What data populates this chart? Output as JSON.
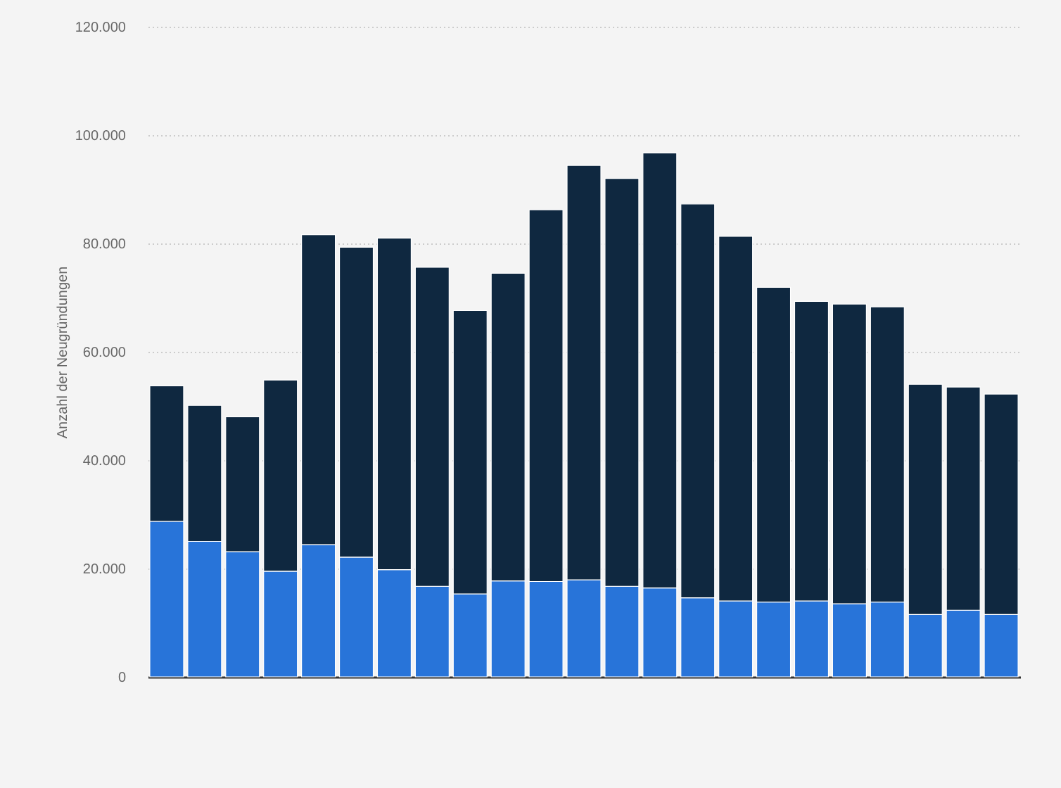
{
  "chart_data": {
    "type": "bar",
    "stacked": true,
    "ylabel": "Anzahl der Neugründungen",
    "categories": [
      null,
      null,
      null,
      null,
      null,
      null,
      null,
      null,
      null,
      null,
      null,
      null,
      null,
      null,
      null,
      null,
      null,
      null,
      null,
      null,
      null,
      null,
      null
    ],
    "series": [
      {
        "color": "#2874d9",
        "values": [
          28700,
          25000,
          23100,
          19500,
          24400,
          22100,
          19800,
          16700,
          15300,
          17700,
          17600,
          17900,
          16700,
          16400,
          14600,
          14000,
          13800,
          14000,
          13500,
          13800,
          11500,
          12300,
          11500
        ]
      },
      {
        "color": "#0f2840",
        "values": [
          25000,
          25100,
          24900,
          35300,
          57200,
          57200,
          61200,
          58900,
          52300,
          56800,
          68600,
          76500,
          75300,
          80300,
          72700,
          67300,
          58100,
          55300,
          55300,
          54500,
          42500,
          41200,
          40700
        ]
      }
    ],
    "ylim": [
      0,
      120000
    ],
    "yticks": [
      0,
      {
        "value": 20000,
        "label": "20.000"
      },
      {
        "value": 40000,
        "label": "40.000"
      },
      {
        "value": 60000,
        "label": "60.000"
      },
      {
        "value": 80000,
        "label": "80.000"
      },
      {
        "value": 100000,
        "label": "100.000"
      },
      {
        "value": 120000,
        "label": "120.000"
      }
    ],
    "grid": "y"
  }
}
